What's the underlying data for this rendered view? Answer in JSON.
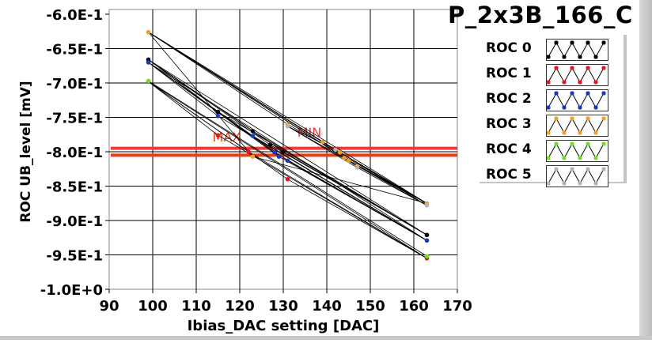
{
  "chart_data": {
    "type": "line",
    "title": "P_2x3B_166_C",
    "xlabel": "Ibias_DAC setting [DAC]",
    "ylabel": "ROC UB_level [mV]",
    "xlim": [
      90,
      170
    ],
    "ylim": [
      -1.0,
      -0.6
    ],
    "grid": true,
    "x_ticks": [
      "90",
      "100",
      "110",
      "120",
      "130",
      "140",
      "150",
      "160",
      "170"
    ],
    "x_tick_values": [
      90,
      100,
      110,
      120,
      130,
      140,
      150,
      160,
      170
    ],
    "y_ticks": [
      "-6.0E-1",
      "-6.5E-1",
      "-7.0E-1",
      "-7.5E-1",
      "-8.0E-1",
      "-8.5E-1",
      "-9.0E-1",
      "-9.5E-1",
      "-1.0E+0"
    ],
    "y_tick_values": [
      -0.6,
      -0.65,
      -0.7,
      -0.75,
      -0.8,
      -0.85,
      -0.9,
      -0.95,
      -1.0
    ],
    "legend_placement": "right",
    "series": [
      {
        "name": "ROC 0",
        "color": "#000000",
        "points": [
          [
            99,
            -0.666
          ],
          [
            115,
            -0.742
          ],
          [
            123,
            -0.77
          ],
          [
            127,
            -0.79
          ],
          [
            130,
            -0.8
          ],
          [
            163,
            -0.921
          ]
        ]
      },
      {
        "name": "ROC 1",
        "color": "#e8141c",
        "points": [
          [
            99,
            -0.698
          ],
          [
            115,
            -0.776
          ],
          [
            122,
            -0.8
          ],
          [
            131,
            -0.84
          ],
          [
            163,
            -0.955
          ]
        ]
      },
      {
        "name": "ROC 2",
        "color": "#1438c8",
        "points": [
          [
            99,
            -0.67
          ],
          [
            115,
            -0.748
          ],
          [
            123,
            -0.777
          ],
          [
            128,
            -0.801
          ],
          [
            129,
            -0.807
          ],
          [
            131,
            -0.813
          ],
          [
            163,
            -0.929
          ]
        ]
      },
      {
        "name": "ROC 3",
        "color": "#f0a020",
        "points": [
          [
            99,
            -0.626
          ],
          [
            123,
            -0.807
          ],
          [
            131,
            -0.76
          ],
          [
            139,
            -0.786
          ],
          [
            143,
            -0.801
          ],
          [
            144,
            -0.809
          ],
          [
            145,
            -0.813
          ],
          [
            147,
            -0.821
          ],
          [
            163,
            -0.875
          ]
        ]
      },
      {
        "name": "ROC 4",
        "color": "#6ee020",
        "points": [
          [
            99,
            -0.697
          ],
          [
            163,
            -0.952
          ]
        ]
      },
      {
        "name": "ROC 5",
        "color": "#b4b4b4",
        "points": [
          [
            131,
            -0.763
          ],
          [
            142,
            -0.797
          ],
          [
            147,
            -0.823
          ],
          [
            163,
            -0.878
          ]
        ]
      }
    ],
    "limits": [
      {
        "label": "MAX",
        "value": -0.805,
        "color": "#f03a10",
        "label_x": 117
      },
      {
        "label": "MIN",
        "value": -0.795,
        "color": "#f03a3a",
        "label_x": 136
      }
    ]
  }
}
